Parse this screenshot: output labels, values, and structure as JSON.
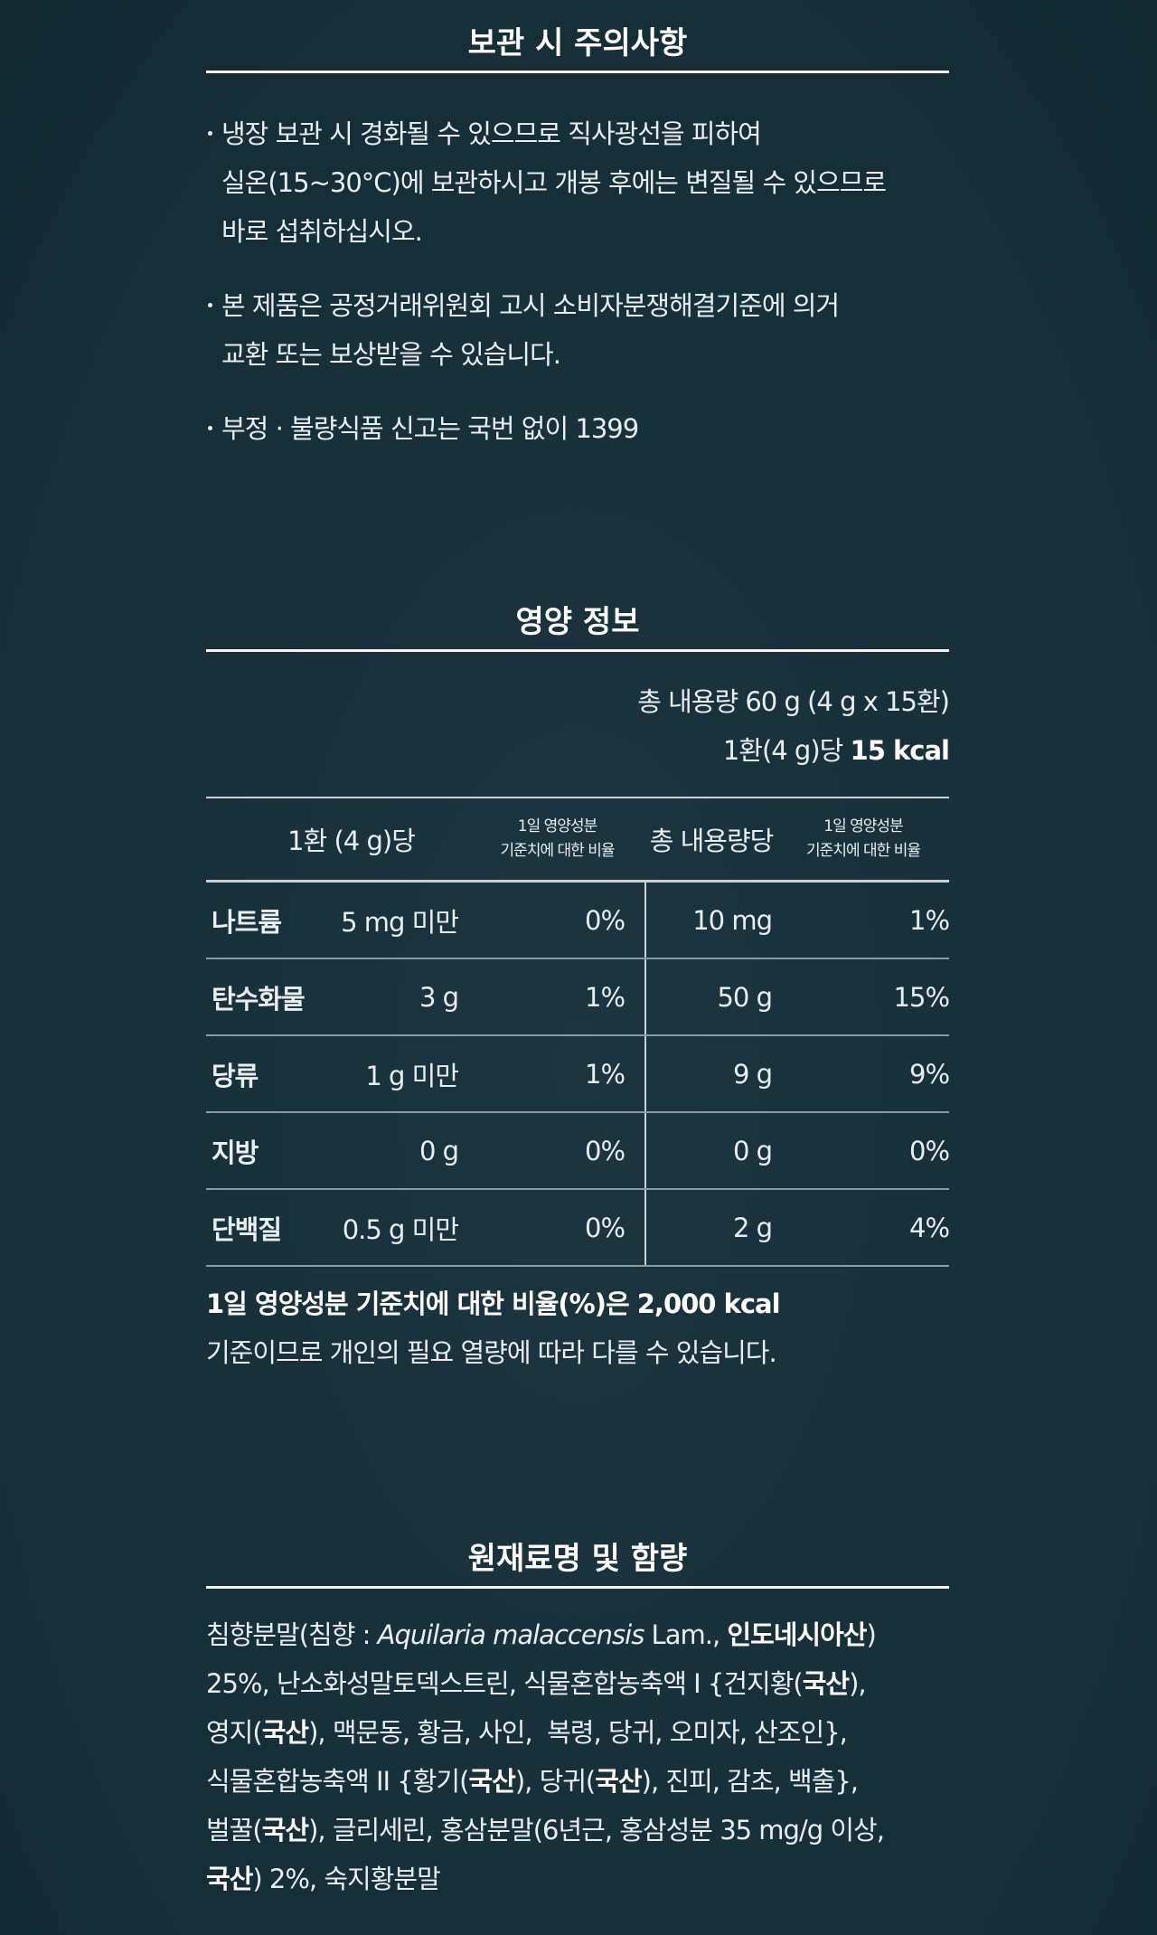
{
  "storage": {
    "title": "보관 시 주의사항",
    "items": [
      [
        "냉장 보관 시 경화될 수 있으므로 직사광선을 피하여",
        "실온(15~30°C)에 보관하시고 개봉 후에는 변질될 수 있으므로",
        "바로 섭취하십시오."
      ],
      [
        "본 제품은 공정거래위원회 고시 소비자분쟁해결기준에 의거",
        "교환 또는 보상받을 수 있습니다."
      ],
      [
        "부정 · 불량식품 신고는 국번 없이 1399"
      ]
    ]
  },
  "nutrition": {
    "title": "영양 정보",
    "total": "총 내용량 60 g (4 g x 15환)",
    "per_serving": [
      "1환(4 g)당 ",
      {
        "text": "15 kcal",
        "style": "bold"
      }
    ],
    "header": [
      "1환 (4 g)당",
      [
        "1일 영양성분",
        "기준치에 대한 비율"
      ],
      "총 내용량당",
      [
        "1일 영양성분",
        "기준치에 대한 비율"
      ]
    ],
    "rows": [
      [
        "나트륨",
        "5 mg 미만",
        "0%",
        "10 mg",
        "1%"
      ],
      [
        "탄수화물",
        "3 g",
        "1%",
        "50 g",
        "15%"
      ],
      [
        "당류",
        "1 g 미만",
        "1%",
        "9 g",
        "9%"
      ],
      [
        "지방",
        "0 g",
        "0%",
        "0 g",
        "0%"
      ],
      [
        "단백질",
        "0.5 g 미만",
        "0%",
        "2 g",
        "4%"
      ]
    ],
    "note": [
      [
        {
          "text": "1일 영양성분 기준치에 대한 비율(%)은 2,000 kcal",
          "style": "bold"
        }
      ],
      [
        "기준이므로 개인의 필요 열량에 따라 다를 수 있습니다."
      ]
    ]
  },
  "ingredients": {
    "title": "원재료명 및 함량",
    "lines": [
      [
        "침향분말(침향 : ",
        {
          "text": "Aquilaria malaccensis",
          "style": "italic"
        },
        " Lam., ",
        {
          "text": "인도네시아산",
          "style": "bold"
        },
        ")"
      ],
      [
        "25%, 난소화성말토덱스트린, 식물혼합농축액 Ⅰ {건지황(",
        {
          "text": "국산",
          "style": "bold"
        },
        "),"
      ],
      [
        "영지(",
        {
          "text": "국산",
          "style": "bold"
        },
        "), 맥문동, 황금, 사인,  복령, 당귀, 오미자, 산조인},"
      ],
      [
        "식물혼합농축액 II {황기(",
        {
          "text": "국산",
          "style": "bold"
        },
        "), 당귀(",
        {
          "text": "국산",
          "style": "bold"
        },
        "), 진피, 감초, 백출},"
      ],
      [
        "벌꿀(",
        {
          "text": "국산",
          "style": "bold"
        },
        "), 글리세린, 홍삼분말(6년근, 홍삼성분 35 mg/g 이상,"
      ],
      [
        {
          "text": "국산",
          "style": "bold"
        },
        ") 2%, 숙지황분말"
      ]
    ]
  }
}
